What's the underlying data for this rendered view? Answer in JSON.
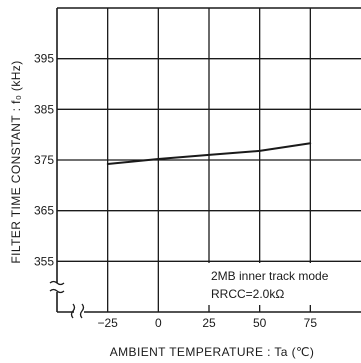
{
  "chart_data": {
    "type": "line",
    "title": "",
    "xlabel": "AMBIENT  TEMPERATURE : Ta  (℃)",
    "ylabel": "FILTER  TIME  CONSTANT : f₀  (kHz)",
    "x_ticks": [
      -25,
      0,
      25,
      50,
      75
    ],
    "y_ticks": [
      355,
      365,
      375,
      385,
      395
    ],
    "xlim": [
      -50,
      100
    ],
    "ylim": [
      345,
      405
    ],
    "grid": true,
    "axis_break": true,
    "series": [
      {
        "x": [
          -25,
          0,
          25,
          50,
          75
        ],
        "y": [
          374.2,
          375.2,
          376,
          376.8,
          378.3
        ]
      }
    ],
    "annotations": [
      "2MB inner track mode",
      "RRCC=2.0kΩ"
    ],
    "colors": {
      "line": "#1a1a1a",
      "grid": "#1a1a1a"
    }
  }
}
